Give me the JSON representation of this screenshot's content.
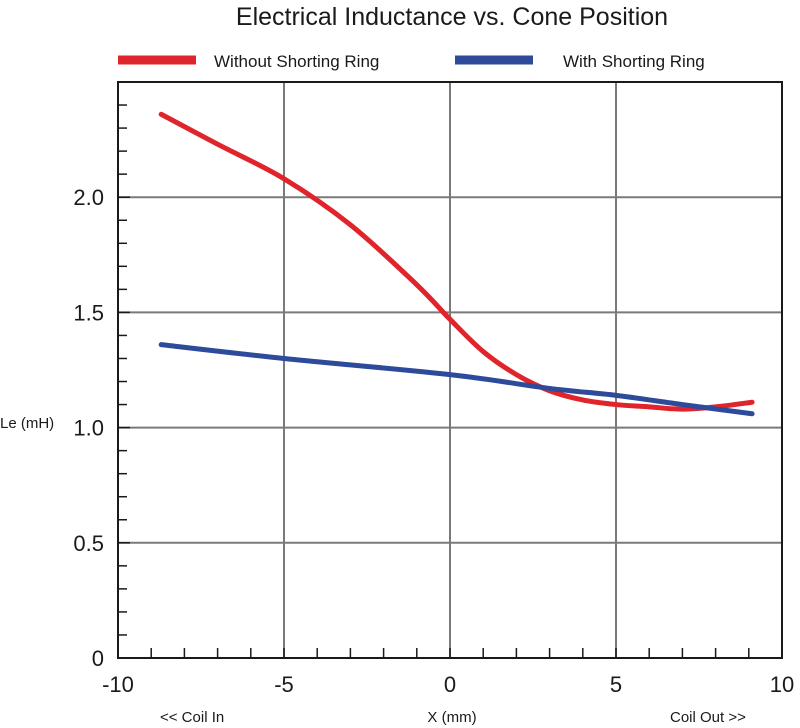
{
  "chart_data": {
    "type": "line",
    "title": "Electrical Inductance vs. Cone Position",
    "xlabel": "X (mm)",
    "ylabel": "Le (mH)",
    "x_annotations": {
      "left": "<< Coil In",
      "right": "Coil Out >>"
    },
    "xlim": [
      -10,
      10
    ],
    "ylim": [
      0,
      2.5
    ],
    "x_ticks": [
      -10,
      -5,
      0,
      5,
      10
    ],
    "x_tick_labels": [
      "-10",
      "-5",
      "0",
      "5",
      "10"
    ],
    "y_ticks": [
      0,
      0.5,
      1.0,
      1.5,
      2.0
    ],
    "y_tick_labels": [
      "0",
      "0.5",
      "1.0",
      "1.5",
      "2.0"
    ],
    "grid": true,
    "legend_position": "top",
    "series": [
      {
        "name": "Without Shorting Ring",
        "color": "#e0242c",
        "x": [
          -8.7,
          -7,
          -5,
          -3,
          -1,
          0,
          1,
          2,
          3,
          4,
          5,
          6,
          7,
          8,
          9.1
        ],
        "y": [
          2.36,
          2.23,
          2.08,
          1.88,
          1.62,
          1.47,
          1.33,
          1.23,
          1.16,
          1.12,
          1.1,
          1.09,
          1.08,
          1.09,
          1.11
        ]
      },
      {
        "name": "With Shorting Ring",
        "color": "#2e4a9a",
        "x": [
          -8.7,
          -5,
          0,
          3,
          5,
          7,
          9.1
        ],
        "y": [
          1.36,
          1.3,
          1.23,
          1.17,
          1.14,
          1.1,
          1.06
        ]
      }
    ]
  }
}
